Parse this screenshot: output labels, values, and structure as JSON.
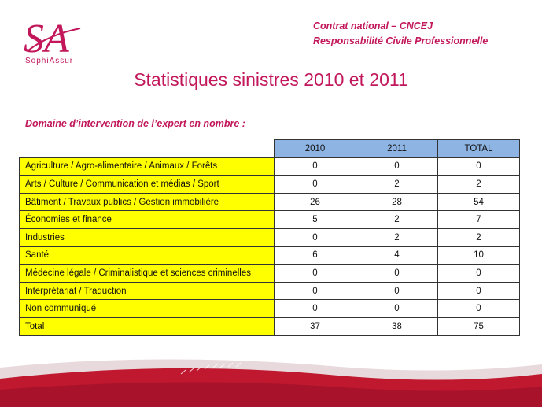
{
  "logo": {
    "letters": "SA",
    "caption": "SophiAssur"
  },
  "header": {
    "line1": "Contrat national – CNCEJ",
    "line2": "Responsabilité Civile Professionnelle"
  },
  "title": "Statistiques sinistres 2010 et 2011",
  "subtitle": {
    "text": "Domaine d’intervention de l’expert en nombre",
    "suffix": " :"
  },
  "table": {
    "headers": [
      "2010",
      "2011",
      "TOTAL"
    ],
    "rows": [
      {
        "label": "Agriculture / Agro-alimentaire / Animaux / Forêts",
        "v2010": "0",
        "v2011": "0",
        "total": "0"
      },
      {
        "label": "Arts / Culture / Communication et médias / Sport",
        "v2010": "0",
        "v2011": "2",
        "total": "2"
      },
      {
        "label": "Bâtiment / Travaux publics / Gestion immobilière",
        "v2010": "26",
        "v2011": "28",
        "total": "54"
      },
      {
        "label": "Économies et finance",
        "v2010": "5",
        "v2011": "2",
        "total": "7"
      },
      {
        "label": "Industries",
        "v2010": "0",
        "v2011": "2",
        "total": "2"
      },
      {
        "label": "Santé",
        "v2010": "6",
        "v2011": "4",
        "total": "10"
      },
      {
        "label": "Médecine légale / Criminalistique et sciences criminelles",
        "v2010": "0",
        "v2011": "0",
        "total": "0"
      },
      {
        "label": "Interprétariat / Traduction",
        "v2010": "0",
        "v2011": "0",
        "total": "0"
      },
      {
        "label": "Non communiqué",
        "v2010": "0",
        "v2011": "0",
        "total": "0"
      },
      {
        "label": "Total",
        "v2010": "37",
        "v2011": "38",
        "total": "75"
      }
    ]
  },
  "colors": {
    "brand": "#c2185b",
    "header_fill": "#8eb4e3",
    "label_fill": "#ffff00",
    "footer_red": "#c0182f"
  }
}
